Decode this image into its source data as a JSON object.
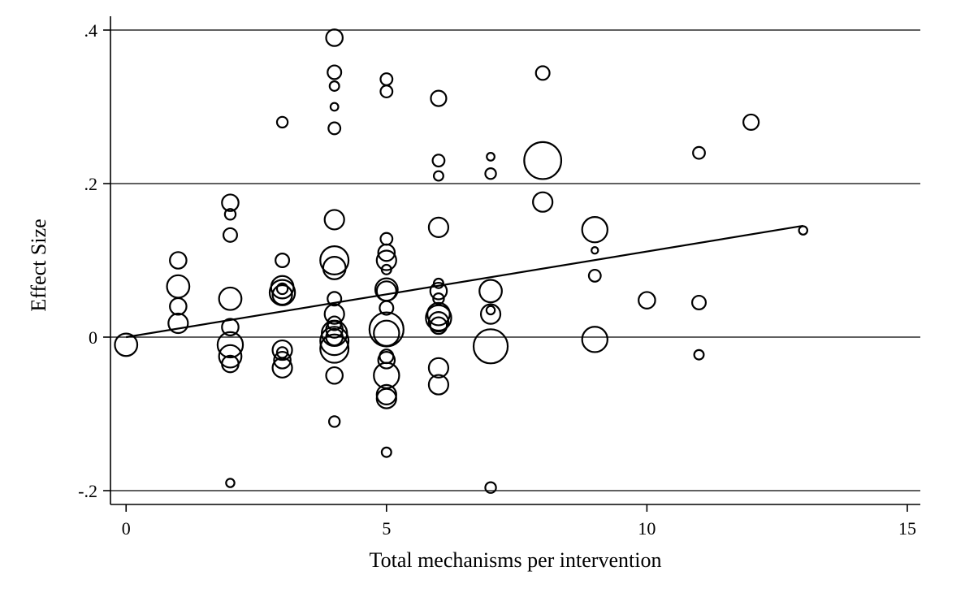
{
  "chart_data": {
    "type": "scatter",
    "title": "",
    "xlabel": "Total mechanisms per intervention",
    "ylabel": "Effect Size",
    "xlim": [
      -0.3,
      15.25
    ],
    "ylim": [
      -0.218,
      0.418
    ],
    "x_ticks": [
      0,
      5,
      10,
      15
    ],
    "x_tick_labels": [
      "0",
      "5",
      "10",
      "15"
    ],
    "y_ticks": [
      -0.2,
      0,
      0.2,
      0.4
    ],
    "y_tick_labels": [
      "-.2",
      "0",
      ".2",
      ".4"
    ],
    "grid": "horizontal",
    "marker": "hollow-circle",
    "marker_size_meaning": "study weight",
    "fit_line": {
      "x": [
        0,
        13
      ],
      "y": [
        0,
        0.145
      ]
    },
    "points": [
      {
        "x": 0,
        "y": -0.01,
        "w": 3
      },
      {
        "x": 1,
        "y": 0.1,
        "w": 2
      },
      {
        "x": 1,
        "y": 0.066,
        "w": 3
      },
      {
        "x": 1,
        "y": 0.04,
        "w": 2
      },
      {
        "x": 1,
        "y": 0.018,
        "w": 2.5
      },
      {
        "x": 2,
        "y": 0.175,
        "w": 2
      },
      {
        "x": 2,
        "y": 0.16,
        "w": 1
      },
      {
        "x": 2,
        "y": 0.133,
        "w": 1.5
      },
      {
        "x": 2,
        "y": 0.05,
        "w": 3
      },
      {
        "x": 2,
        "y": 0.013,
        "w": 2
      },
      {
        "x": 2,
        "y": -0.01,
        "w": 3.5
      },
      {
        "x": 2,
        "y": -0.025,
        "w": 3
      },
      {
        "x": 2,
        "y": -0.035,
        "w": 2
      },
      {
        "x": 2,
        "y": -0.19,
        "w": 0.6
      },
      {
        "x": 3,
        "y": 0.28,
        "w": 1
      },
      {
        "x": 3,
        "y": 0.1,
        "w": 1.5
      },
      {
        "x": 3,
        "y": 0.065,
        "w": 3
      },
      {
        "x": 3,
        "y": 0.058,
        "w": 3.5
      },
      {
        "x": 3,
        "y": 0.055,
        "w": 2.5
      },
      {
        "x": 3,
        "y": 0.063,
        "w": 1
      },
      {
        "x": 3,
        "y": -0.017,
        "w": 2.5
      },
      {
        "x": 3,
        "y": -0.02,
        "w": 1
      },
      {
        "x": 3,
        "y": -0.03,
        "w": 2
      },
      {
        "x": 3,
        "y": -0.04,
        "w": 2.5
      },
      {
        "x": 4,
        "y": 0.39,
        "w": 2
      },
      {
        "x": 4,
        "y": 0.345,
        "w": 1.5
      },
      {
        "x": 4,
        "y": 0.327,
        "w": 0.8
      },
      {
        "x": 4,
        "y": 0.3,
        "w": 0.5
      },
      {
        "x": 4,
        "y": 0.272,
        "w": 1.2
      },
      {
        "x": 4,
        "y": 0.153,
        "w": 2.5
      },
      {
        "x": 4,
        "y": 0.1,
        "w": 4
      },
      {
        "x": 4,
        "y": 0.09,
        "w": 3
      },
      {
        "x": 4,
        "y": 0.05,
        "w": 1.5
      },
      {
        "x": 4,
        "y": 0.03,
        "w": 2.5
      },
      {
        "x": 4,
        "y": 0.018,
        "w": 1.5
      },
      {
        "x": 4,
        "y": 0.01,
        "w": 2
      },
      {
        "x": 4,
        "y": 0.005,
        "w": 3.5
      },
      {
        "x": 4,
        "y": 0.0,
        "w": 2
      },
      {
        "x": 4,
        "y": -0.005,
        "w": 4
      },
      {
        "x": 4,
        "y": -0.015,
        "w": 4
      },
      {
        "x": 4,
        "y": -0.05,
        "w": 2
      },
      {
        "x": 4,
        "y": -0.11,
        "w": 1
      },
      {
        "x": 5,
        "y": 0.336,
        "w": 1.2
      },
      {
        "x": 5,
        "y": 0.32,
        "w": 1.2
      },
      {
        "x": 5,
        "y": 0.128,
        "w": 1.2
      },
      {
        "x": 5,
        "y": 0.11,
        "w": 2
      },
      {
        "x": 5,
        "y": 0.1,
        "w": 2.5
      },
      {
        "x": 5,
        "y": 0.088,
        "w": 0.8
      },
      {
        "x": 5,
        "y": 0.062,
        "w": 3
      },
      {
        "x": 5,
        "y": 0.06,
        "w": 2.5
      },
      {
        "x": 5,
        "y": 0.038,
        "w": 1.5
      },
      {
        "x": 5,
        "y": 0.01,
        "w": 5
      },
      {
        "x": 5,
        "y": 0.005,
        "w": 3.5
      },
      {
        "x": 5,
        "y": -0.025,
        "w": 1.5
      },
      {
        "x": 5,
        "y": -0.03,
        "w": 2
      },
      {
        "x": 5,
        "y": -0.05,
        "w": 3.5
      },
      {
        "x": 5,
        "y": -0.075,
        "w": 2.5
      },
      {
        "x": 5,
        "y": -0.08,
        "w": 2.5
      },
      {
        "x": 5,
        "y": -0.15,
        "w": 0.8
      },
      {
        "x": 6,
        "y": 0.311,
        "w": 1.8
      },
      {
        "x": 6,
        "y": 0.23,
        "w": 1.2
      },
      {
        "x": 6,
        "y": 0.21,
        "w": 0.8
      },
      {
        "x": 6,
        "y": 0.143,
        "w": 2.5
      },
      {
        "x": 6,
        "y": 0.07,
        "w": 0.8
      },
      {
        "x": 6,
        "y": 0.06,
        "w": 2
      },
      {
        "x": 6,
        "y": 0.05,
        "w": 1
      },
      {
        "x": 6,
        "y": 0.03,
        "w": 3
      },
      {
        "x": 6,
        "y": 0.025,
        "w": 3.5
      },
      {
        "x": 6,
        "y": 0.02,
        "w": 2.5
      },
      {
        "x": 6,
        "y": 0.015,
        "w": 2
      },
      {
        "x": 6,
        "y": -0.04,
        "w": 2.5
      },
      {
        "x": 6,
        "y": -0.062,
        "w": 2.5
      },
      {
        "x": 7,
        "y": 0.235,
        "w": 0.5
      },
      {
        "x": 7,
        "y": 0.213,
        "w": 1
      },
      {
        "x": 7,
        "y": 0.06,
        "w": 3
      },
      {
        "x": 7,
        "y": 0.035,
        "w": 0.6
      },
      {
        "x": 7,
        "y": 0.03,
        "w": 2.5
      },
      {
        "x": 7,
        "y": -0.012,
        "w": 5
      },
      {
        "x": 7,
        "y": -0.196,
        "w": 1
      },
      {
        "x": 8,
        "y": 0.344,
        "w": 1.5
      },
      {
        "x": 8,
        "y": 0.23,
        "w": 5.5
      },
      {
        "x": 8,
        "y": 0.176,
        "w": 2.5
      },
      {
        "x": 9,
        "y": 0.14,
        "w": 3.5
      },
      {
        "x": 9,
        "y": 0.113,
        "w": 0.3
      },
      {
        "x": 9,
        "y": 0.08,
        "w": 1.2
      },
      {
        "x": 9,
        "y": -0.003,
        "w": 3.5
      },
      {
        "x": 10,
        "y": 0.048,
        "w": 2
      },
      {
        "x": 11,
        "y": 0.24,
        "w": 1.2
      },
      {
        "x": 11,
        "y": 0.045,
        "w": 1.5
      },
      {
        "x": 11,
        "y": -0.023,
        "w": 0.8
      },
      {
        "x": 12,
        "y": 0.28,
        "w": 1.8
      },
      {
        "x": 13,
        "y": 0.139,
        "w": 0.6
      }
    ]
  }
}
